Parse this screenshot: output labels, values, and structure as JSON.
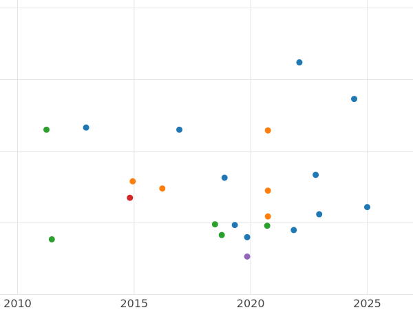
{
  "chart_data": {
    "type": "scatter",
    "title": "",
    "xlabel": "",
    "ylabel": "",
    "grid": true,
    "legend": "none",
    "xlim": [
      2010,
      2026.9
    ],
    "ylim": [
      0,
      4
    ],
    "x_ticks": [
      2010,
      2015,
      2020,
      2025
    ],
    "x_tick_labels": [
      "2010",
      "2015",
      "2020",
      "2025"
    ],
    "y_ticks": [
      0,
      1,
      2,
      3,
      4
    ],
    "y_tick_labels": [],
    "colors": {
      "blue": "#1f77b4",
      "orange": "#ff7f0e",
      "green": "#2ca02c",
      "red": "#d62728",
      "purple": "#9467bd"
    },
    "points": [
      {
        "x": 2011.24,
        "y": 2.3,
        "color": "#2ca02c"
      },
      {
        "x": 2011.47,
        "y": 0.77,
        "color": "#2ca02c"
      },
      {
        "x": 2012.94,
        "y": 2.33,
        "color": "#1f77b4"
      },
      {
        "x": 2014.82,
        "y": 1.35,
        "color": "#d62728"
      },
      {
        "x": 2014.94,
        "y": 1.58,
        "color": "#ff7f0e"
      },
      {
        "x": 2016.21,
        "y": 1.48,
        "color": "#ff7f0e"
      },
      {
        "x": 2016.94,
        "y": 2.3,
        "color": "#1f77b4"
      },
      {
        "x": 2018.47,
        "y": 0.98,
        "color": "#2ca02c"
      },
      {
        "x": 2018.76,
        "y": 0.83,
        "color": "#2ca02c"
      },
      {
        "x": 2018.88,
        "y": 1.63,
        "color": "#1f77b4"
      },
      {
        "x": 2019.32,
        "y": 0.97,
        "color": "#1f77b4"
      },
      {
        "x": 2019.85,
        "y": 0.8,
        "color": "#1f77b4"
      },
      {
        "x": 2019.85,
        "y": 0.53,
        "color": "#9467bd"
      },
      {
        "x": 2020.71,
        "y": 0.96,
        "color": "#2ca02c"
      },
      {
        "x": 2020.74,
        "y": 2.29,
        "color": "#ff7f0e"
      },
      {
        "x": 2020.74,
        "y": 1.45,
        "color": "#ff7f0e"
      },
      {
        "x": 2020.74,
        "y": 1.09,
        "color": "#ff7f0e"
      },
      {
        "x": 2021.85,
        "y": 0.9,
        "color": "#1f77b4"
      },
      {
        "x": 2022.09,
        "y": 3.24,
        "color": "#1f77b4"
      },
      {
        "x": 2022.79,
        "y": 1.67,
        "color": "#1f77b4"
      },
      {
        "x": 2022.94,
        "y": 1.12,
        "color": "#1f77b4"
      },
      {
        "x": 2024.44,
        "y": 2.73,
        "color": "#1f77b4"
      },
      {
        "x": 2025.0,
        "y": 1.22,
        "color": "#1f77b4"
      }
    ]
  }
}
